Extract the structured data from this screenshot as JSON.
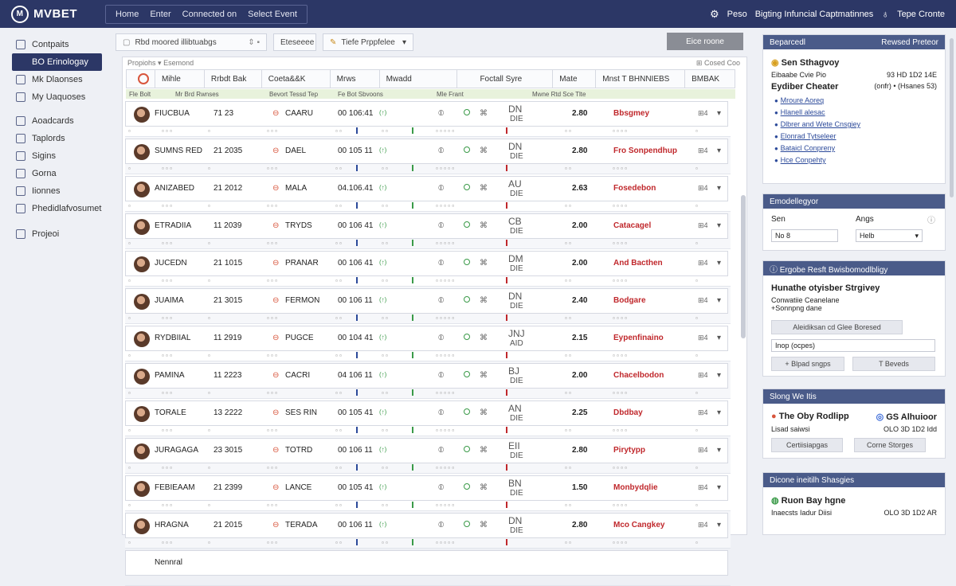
{
  "app": {
    "logo": "MVBET",
    "logo_mark": "M"
  },
  "topnav": [
    "Home",
    "Enter",
    "Connected on",
    "Select Event"
  ],
  "topright": {
    "item1": "Peso",
    "item2": "Bigting Infuncial Captmatinnes",
    "item3": "Tepe Cronte"
  },
  "sidebar": {
    "items": [
      {
        "label": "Contpaits",
        "icon": "grid-icon"
      },
      {
        "label": "BO Erinologay",
        "icon": "",
        "active": true
      },
      {
        "label": "Mk Dlaonses",
        "icon": "list-icon"
      },
      {
        "label": "My Uaquoses",
        "icon": "user-icon"
      },
      {
        "label": "Aoadcards",
        "icon": "card-icon"
      },
      {
        "label": "Taplords",
        "icon": "tag-icon"
      },
      {
        "label": "Sigins",
        "icon": "sign-icon"
      },
      {
        "label": "Gorna",
        "icon": "game-icon"
      },
      {
        "label": "Iionnes",
        "icon": "page-icon"
      },
      {
        "label": "Phedidlafvosumet",
        "icon": "doc-icon"
      },
      {
        "label": "Projeoi",
        "icon": "filter-icon"
      }
    ]
  },
  "toolbar": {
    "search_placeholder": "Rbd moored illibtuabgs",
    "btn1": "Eteseeee",
    "filter": "Tiefe Prppfelee",
    "export": "Eice roone"
  },
  "crumb": "Propiohs",
  "crumb2": "Esemond",
  "crumb_right": "Cosed Coo",
  "columns": [
    "Mihle",
    "Rrbdt Bak",
    "Coeta&&K",
    "Mrws",
    "Mwadd",
    "Foctall Syre",
    "Mate",
    "Mnst T BHNNIEBS",
    "BMBAK"
  ],
  "subheader": [
    "Fle Bolt",
    "Mr Brd Rwnses",
    "Bevort Tessd Tep",
    "Fe Bot Sbvoons",
    "Mle Frant",
    "Mwne Rtd Sce Tlte"
  ],
  "rows": [
    {
      "name": "FIUCBUA",
      "num": "71 23",
      "team": "CAARU",
      "time": "00 106:41",
      "code": "DN",
      "code2": "DIE",
      "odd": "2.80",
      "tag": "Bbsgmey"
    },
    {
      "name": "SUMNS RED",
      "num": "21 2035",
      "team": "DAEL",
      "time": "00 105 11",
      "code": "DN",
      "code2": "DIE",
      "odd": "2.80",
      "tag": "Fro Sonpendhup"
    },
    {
      "name": "ANIZABED",
      "num": "21 2012",
      "team": "MALA",
      "time": "04.106.41",
      "code": "AU",
      "code2": "DIE",
      "odd": "2.63",
      "tag": "Fosedebon"
    },
    {
      "name": "ETRADIIA",
      "num": "11 2039",
      "team": "TRYDS",
      "time": "00 106 41",
      "code": "CB",
      "code2": "DIE",
      "odd": "2.00",
      "tag": "Catacagel"
    },
    {
      "name": "JUCEDN",
      "num": "21 1015",
      "team": "PRANAR",
      "time": "00 106 41",
      "code": "DM",
      "code2": "DIE",
      "odd": "2.00",
      "tag": "And Bacthen"
    },
    {
      "name": "JUAIMA",
      "num": "21 3015",
      "team": "FERMON",
      "time": "00 106 11",
      "code": "DN",
      "code2": "DIE",
      "odd": "2.40",
      "tag": "Bodgare"
    },
    {
      "name": "RYDBIIAL",
      "num": "11 2919",
      "team": "PUGCE",
      "time": "00 104 41",
      "code": "JNJ",
      "code2": "AID",
      "odd": "2.15",
      "tag": "Eypenfinaino"
    },
    {
      "name": "PAMINA",
      "num": "11 2223",
      "team": "CACRI",
      "time": "04 106 11",
      "code": "BJ",
      "code2": "DIE",
      "odd": "2.00",
      "tag": "Chacelbodon"
    },
    {
      "name": "TORALE",
      "num": "13 2222",
      "team": "SES RIN",
      "time": "00 105 41",
      "code": "AN",
      "code2": "DIE",
      "odd": "2.25",
      "tag": "Dbdbay"
    },
    {
      "name": "JURAGAGA",
      "num": "23 3015",
      "team": "TOTRD",
      "time": "00 106 11",
      "code": "EII",
      "code2": "DIE",
      "odd": "2.80",
      "tag": "Pirytypp"
    },
    {
      "name": "FEBIEAAM",
      "num": "21 2399",
      "team": "LANCE",
      "time": "00 105 41",
      "code": "BN",
      "code2": "DIE",
      "odd": "1.50",
      "tag": "Monbydqlie"
    },
    {
      "name": "HRAGNA",
      "num": "21 2015",
      "team": "TERADA",
      "time": "00 106 11",
      "code": "DN",
      "code2": "DIE",
      "odd": "2.80",
      "tag": "Mco Cangkey"
    },
    {
      "name": "Nennral",
      "num": "",
      "team": "",
      "time": "",
      "code": "",
      "code2": "",
      "odd": "",
      "tag": ""
    }
  ],
  "right": {
    "p1": {
      "head": "Beparcedl",
      "head_right": "Rewsed Preteor",
      "title": "Sen Sthagvoy",
      "sub": "Eibaabe Cvie Pio",
      "sub_right": "93 HD 1D2 14E",
      "title2": "Eydiber Cheater",
      "title2_right": "(onfr) • (Hsanes 53)",
      "links": [
        "Mroure Aoreq",
        "Hlanell alesac",
        "Dlbrer and Wete Cnsgiey",
        "Elonrad Tytseleer",
        "Bataicl Conpreny",
        "Hce Conpehty"
      ]
    },
    "p2": {
      "head": "Emodellegyor",
      "label1": "Sen",
      "label2": "Angs",
      "input1": "No 8",
      "select": "Helb"
    },
    "p3": {
      "head": "Ergobe Resft Bwisbomodlbligy",
      "title": "Hunathe otyisber Strgivey",
      "sub1": "Conwatiie Ceanelane",
      "sub2": "+Sonnpng dane",
      "btn": "Aleidiksan cd Glee Boresed",
      "input": "Inop (ocpes)",
      "btn1": "+ Blpad sngps",
      "btn2": "T Beveds"
    },
    "p4": {
      "head": "Slong We Itis",
      "title": "The Oby Rodlipp",
      "title_right": "GS Alhuioor",
      "sub": "Lisad saiwsi",
      "sub_right": "OLO 3D 1D2 Idd",
      "btn1": "Certiisiapgas",
      "btn2": "Corne Storges"
    },
    "p5": {
      "head": "Dicone ineitilh Shasgies",
      "title": "Ruon Bay hgne",
      "sub": "Inaecsts Iadur Diisi",
      "sub_right": "OLO 3D 1D2 AR"
    }
  },
  "colors": {
    "nav": "#2c3766",
    "accent_red": "#c0282c",
    "panel_head": "#4a5b89"
  }
}
